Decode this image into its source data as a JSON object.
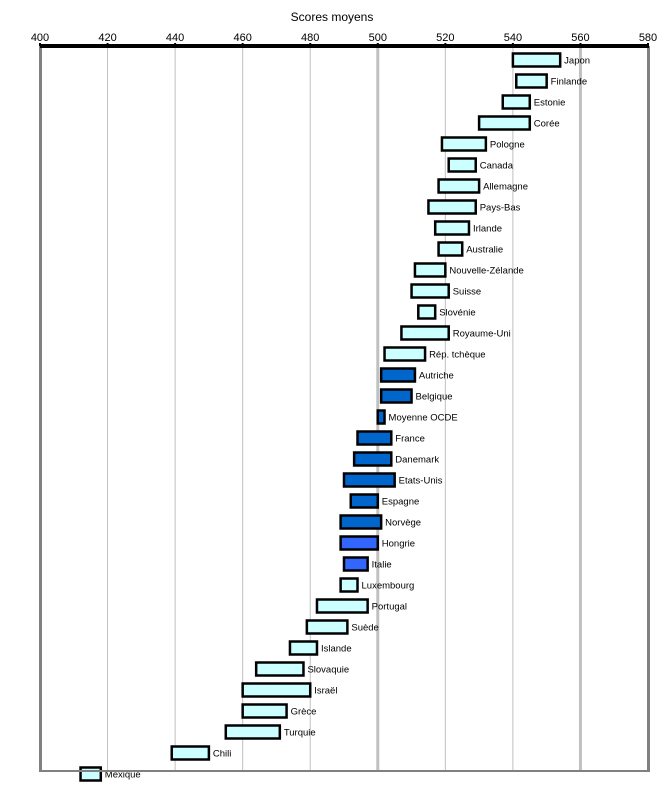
{
  "chart_data": {
    "type": "bar",
    "orientation": "horizontal",
    "subtype": "floating-range",
    "title": "Scores moyens",
    "xlabel": "Scores moyens",
    "ylabel": "",
    "xlim": [
      400,
      580
    ],
    "xticks": [
      400,
      420,
      440,
      460,
      480,
      500,
      520,
      540,
      560,
      580
    ],
    "grid": "vertical",
    "legend": "none",
    "colors": {
      "above_average": "#ccffff",
      "not_significantly_different": "#0066cc",
      "below_average_blue": "#3366ff",
      "border": "#000000",
      "gridline": "#c0c0c0",
      "frame": "#808080"
    },
    "categories": [
      "Japon",
      "Finlande",
      "Estonie",
      "Corée",
      "Pologne",
      "Canada",
      "Allemagne",
      "Pays-Bas",
      "Irlande",
      "Australie",
      "Nouvelle-Zélande",
      "Suisse",
      "Slovénie",
      "Royaume-Uni",
      "Rép. tchèque",
      "Autriche",
      "Belgique",
      "Moyenne OCDE",
      "France",
      "Danemark",
      "Etats-Unis",
      "Espagne",
      "Norvège",
      "Hongrie",
      "Italie",
      "Luxembourg",
      "Portugal",
      "Suède",
      "Islande",
      "Slovaquie",
      "Israël",
      "Grèce",
      "Turquie",
      "Chili",
      "Mexique"
    ],
    "series": [
      {
        "name": "low",
        "values": [
          540,
          541,
          537,
          530,
          519,
          521,
          518,
          515,
          517,
          518,
          511,
          510,
          512,
          507,
          502,
          501,
          501,
          500,
          494,
          493,
          490,
          492,
          489,
          489,
          490,
          489,
          482,
          479,
          474,
          464,
          460,
          460,
          455,
          439,
          412
        ]
      },
      {
        "name": "high",
        "values": [
          554,
          550,
          545,
          545,
          532,
          529,
          530,
          529,
          527,
          525,
          520,
          521,
          517,
          521,
          514,
          511,
          510,
          502,
          504,
          504,
          505,
          500,
          501,
          500,
          497,
          494,
          497,
          491,
          482,
          478,
          480,
          473,
          471,
          450,
          418
        ]
      }
    ],
    "bar_color_group": [
      "light",
      "light",
      "light",
      "light",
      "light",
      "light",
      "light",
      "light",
      "light",
      "light",
      "light",
      "light",
      "light",
      "light",
      "light",
      "dark",
      "dark",
      "dark",
      "dark",
      "dark",
      "dark",
      "dark",
      "dark",
      "mid",
      "mid",
      "light",
      "light",
      "light",
      "light",
      "light",
      "light",
      "light",
      "light",
      "light",
      "light"
    ]
  }
}
